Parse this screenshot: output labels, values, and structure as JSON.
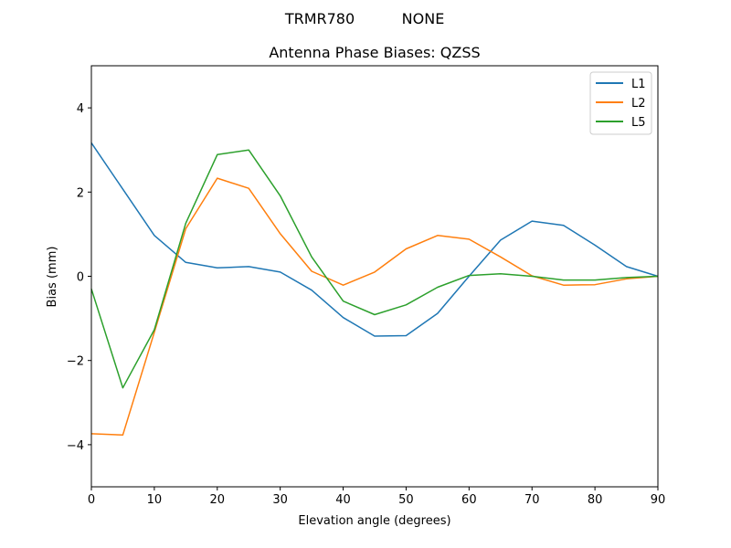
{
  "figure": {
    "suptitle_left": "TRMR780",
    "suptitle_right": "NONE"
  },
  "chart_data": {
    "type": "line",
    "title": "Antenna Phase Biases: QZSS",
    "xlabel": "Elevation angle (degrees)",
    "ylabel": "Bias (mm)",
    "xlim": [
      0,
      90
    ],
    "ylim": [
      -5,
      5
    ],
    "xticks": [
      0,
      10,
      20,
      30,
      40,
      50,
      60,
      70,
      80,
      90
    ],
    "yticks": [
      -4,
      -2,
      0,
      2,
      4
    ],
    "ytick_labels": [
      "−4",
      "−2",
      "0",
      "2",
      "4"
    ],
    "grid": false,
    "legend_position": "upper right",
    "x": [
      0,
      5,
      10,
      15,
      20,
      25,
      30,
      35,
      40,
      45,
      50,
      55,
      60,
      65,
      70,
      75,
      80,
      85,
      90
    ],
    "series": [
      {
        "name": "L1",
        "color": "#1f77b4",
        "values": [
          3.17,
          2.07,
          0.97,
          0.33,
          0.2,
          0.23,
          0.1,
          -0.33,
          -0.98,
          -1.42,
          -1.41,
          -0.88,
          0.0,
          0.86,
          1.31,
          1.21,
          0.74,
          0.23,
          0.0
        ]
      },
      {
        "name": "L2",
        "color": "#ff7f0e",
        "values": [
          -3.74,
          -3.77,
          -1.33,
          1.13,
          2.33,
          2.09,
          1.01,
          0.12,
          -0.21,
          0.1,
          0.65,
          0.97,
          0.88,
          0.46,
          0.01,
          -0.21,
          -0.2,
          -0.06,
          0.0
        ]
      },
      {
        "name": "L5",
        "color": "#2ca02c",
        "values": [
          -0.3,
          -2.65,
          -1.27,
          1.26,
          2.89,
          3.0,
          1.91,
          0.46,
          -0.59,
          -0.91,
          -0.68,
          -0.26,
          0.02,
          0.06,
          0.0,
          -0.09,
          -0.09,
          -0.03,
          0.0
        ]
      }
    ]
  }
}
